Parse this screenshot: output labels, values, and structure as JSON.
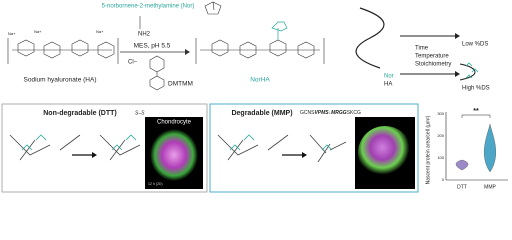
{
  "scheme": {
    "reagent": "5-norbornene-2-methylamine (Nor)",
    "amine": "NH2",
    "counterion": "Na+",
    "conditions": "MES, pH 5.5",
    "chloride": "Cl−",
    "coupling_agent": "DMTMM",
    "ha_label": "Sodium hyaluronate (HA)",
    "product_label": "NorHA"
  },
  "control": {
    "factors": [
      "Time",
      "Temperature",
      "Stoichiometry"
    ],
    "low": "Low %DS",
    "high": "High %DS",
    "nor": "Nor",
    "ha": "HA"
  },
  "panels": [
    {
      "title": "Non-degradable (DTT)",
      "linker": "S–S",
      "cell": "Chondrocyte",
      "scale": "12 h (2D)"
    },
    {
      "title": "Degradable (MMP)",
      "sequence": [
        "GCNS",
        "VPMS",
        "↓",
        "MRGG",
        "SKCG"
      ]
    }
  ],
  "plot": {
    "y_label": "Nascent protein area/cell (µm²)",
    "significance": "**",
    "groups": [
      "DTT",
      "MMP"
    ],
    "yticks": [
      "300",
      "200",
      "100",
      "0"
    ]
  }
}
